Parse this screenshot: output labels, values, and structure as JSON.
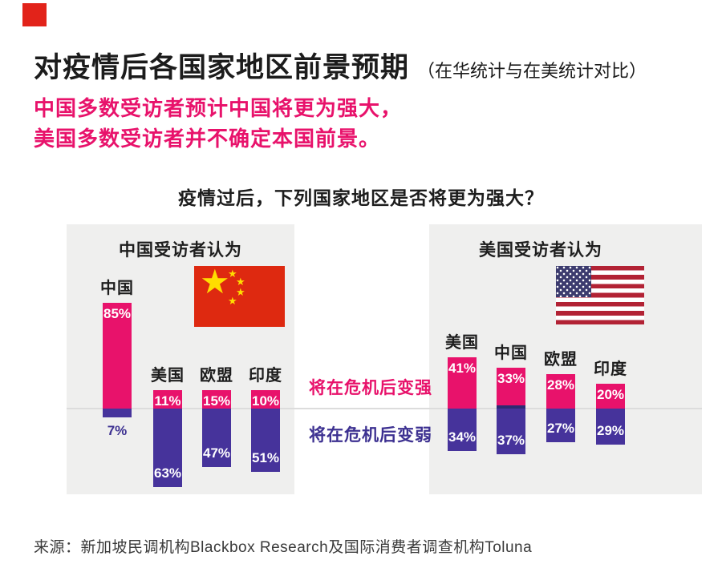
{
  "colors": {
    "accent_pink": "#e8126b",
    "accent_purple": "#46339b",
    "purple_text": "#3d3191",
    "logo_red": "#e2231a",
    "cn_flag_red": "#de2910",
    "cn_flag_yellow": "#ffde00",
    "us_flag_red": "#b22234",
    "us_flag_blue": "#3c3b6e",
    "panel_bg": "#efefee"
  },
  "header": {
    "title": "对疫情后各国家地区前景预期",
    "title_suffix": "（在华统计与在美统计对比）",
    "subtitle_line1": "中国多数受访者预计中国将更为强大，",
    "subtitle_line2": "美国多数受访者并不确定本国前景。"
  },
  "question": "疫情过后，下列国家地区是否将更为强大？",
  "legend": {
    "stronger": "将在危机后变强",
    "weaker": "将在危机后变弱"
  },
  "panels": {
    "left": {
      "header": "中国受访者认为",
      "flag": "china-flag",
      "bars": [
        {
          "label": "中国",
          "strong": "85%",
          "strong_value": 85,
          "weak": "7%",
          "weak_value": 7
        },
        {
          "label": "美国",
          "strong": "11%",
          "strong_value": 11,
          "weak": "63%",
          "weak_value": 63
        },
        {
          "label": "欧盟",
          "strong": "15%",
          "strong_value": 15,
          "weak": "47%",
          "weak_value": 47
        },
        {
          "label": "印度",
          "strong": "10%",
          "strong_value": 10,
          "weak": "51%",
          "weak_value": 51
        }
      ]
    },
    "right": {
      "header": "美国受访者认为",
      "flag": "us-flag",
      "bars": [
        {
          "label": "美国",
          "strong": "41%",
          "strong_value": 41,
          "weak": "34%",
          "weak_value": 34
        },
        {
          "label": "中国",
          "strong": "33%",
          "strong_value": 33,
          "weak": "37%",
          "weak_value": 37
        },
        {
          "label": "欧盟",
          "strong": "28%",
          "strong_value": 28,
          "weak": "27%",
          "weak_value": 27
        },
        {
          "label": "印度",
          "strong": "20%",
          "strong_value": 20,
          "weak": "29%",
          "weak_value": 29
        }
      ]
    }
  },
  "source": "来源：新加坡民调机构Blackbox Research及国际消费者调查机构Toluna",
  "chart_data": {
    "type": "bar",
    "title": "疫情过后，下列国家地区是否将更为强大？",
    "subtitle": "对疫情后各国家地区前景预期（在华统计与在美统计对比）",
    "legend_position": "middle",
    "legend": [
      "将在危机后变强",
      "将在危机后变弱"
    ],
    "ylim": [
      0,
      100
    ],
    "grid": false,
    "panels": [
      {
        "respondents": "中国受访者认为",
        "categories": [
          "中国",
          "美国",
          "欧盟",
          "印度"
        ],
        "series": [
          {
            "name": "将在危机后变强",
            "values": [
              85,
              11,
              15,
              10
            ]
          },
          {
            "name": "将在危机后变弱",
            "values": [
              7,
              63,
              47,
              51
            ]
          }
        ]
      },
      {
        "respondents": "美国受访者认为",
        "categories": [
          "美国",
          "中国",
          "欧盟",
          "印度"
        ],
        "series": [
          {
            "name": "将在危机后变强",
            "values": [
              41,
              33,
              28,
              20
            ]
          },
          {
            "name": "将在危机后变弱",
            "values": [
              34,
              37,
              27,
              29
            ]
          }
        ]
      }
    ]
  }
}
